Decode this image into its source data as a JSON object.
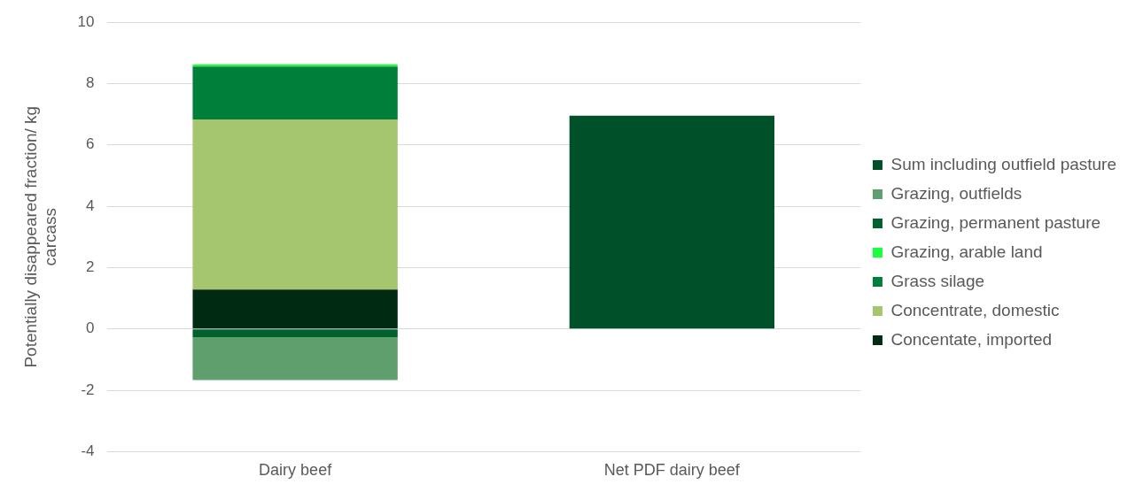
{
  "chart_data": {
    "type": "bar",
    "stacked": true,
    "ylabel": "Potentially disappeared fraction/ kg carcass",
    "categories": [
      "Dairy beef",
      "Net PDF dairy beef"
    ],
    "series": [
      {
        "name": "Concentate, imported",
        "color": "#002b12",
        "values": [
          1.28,
          null
        ]
      },
      {
        "name": "Concentrate, domestic",
        "color": "#a5c66e",
        "values": [
          5.55,
          null
        ]
      },
      {
        "name": "Grass silage",
        "color": "#007f3a",
        "values": [
          1.72,
          null
        ]
      },
      {
        "name": "Grazing, arable land",
        "color": "#1aff3c",
        "values": [
          0.07,
          null
        ]
      },
      {
        "name": "Grazing, permanent pasture",
        "color": "#00602e",
        "values": [
          -0.27,
          null
        ]
      },
      {
        "name": "Grazing, outfields",
        "color": "#5f9f6e",
        "values": [
          -1.4,
          null
        ]
      },
      {
        "name": "Sum including outfield pasture",
        "color": "#00502a",
        "values": [
          null,
          6.95
        ]
      }
    ],
    "ylim": [
      -4,
      10
    ],
    "yticks": [
      -4,
      -2,
      0,
      2,
      4,
      6,
      8,
      10
    ],
    "grid": "y",
    "legend": "right"
  }
}
